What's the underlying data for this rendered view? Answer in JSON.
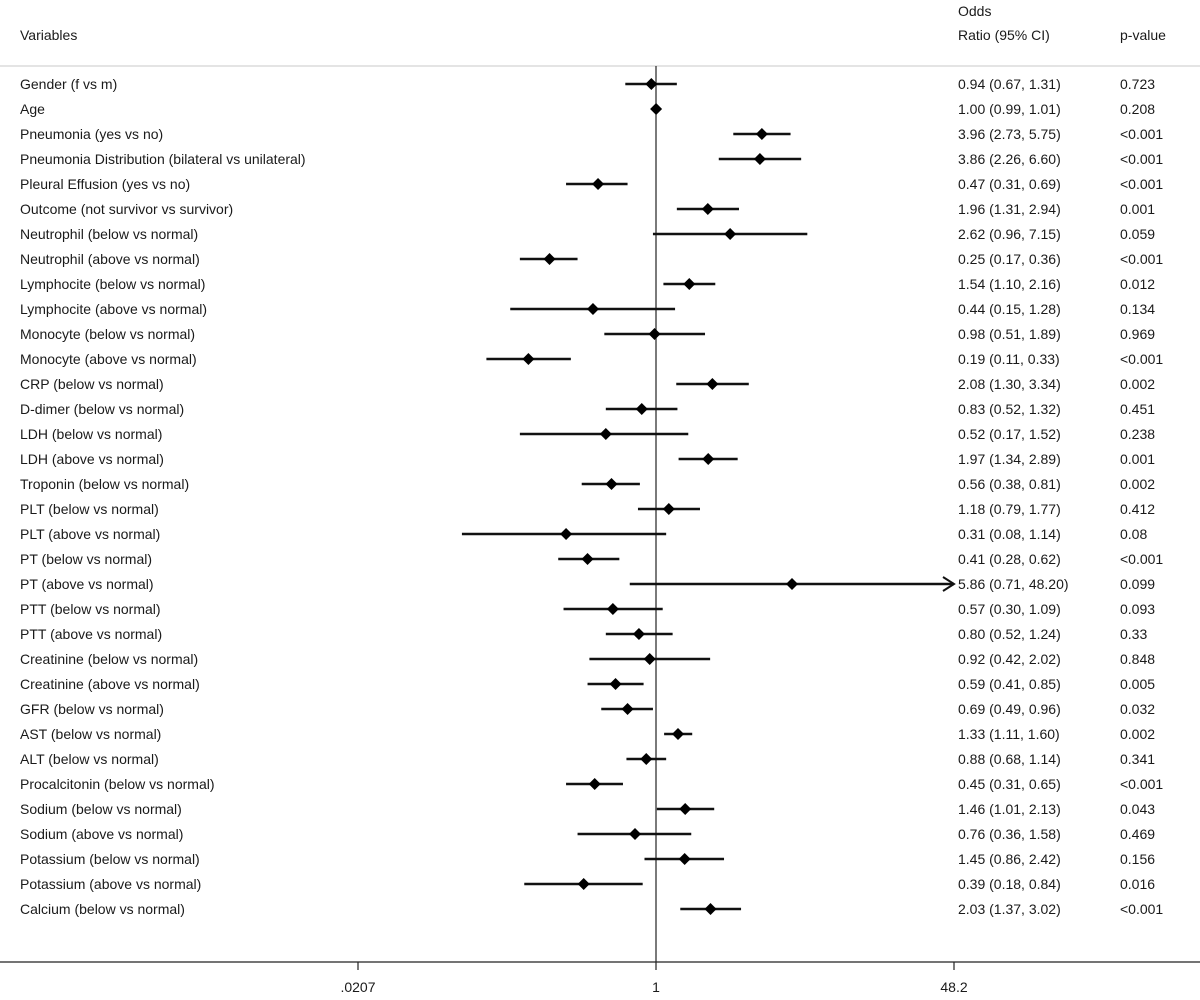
{
  "chart_data": {
    "type": "forest",
    "headers": {
      "variables": "Variables",
      "or_line1": "Odds",
      "or_line2": "Ratio (95% CI)",
      "pvalue": "p-value"
    },
    "x_scale": "log",
    "xlim": [
      0.0207,
      48.2
    ],
    "xticks": [
      ".0207",
      "1",
      "48.2"
    ],
    "reference_line": 1,
    "rows": [
      {
        "label": "Gender (f vs m)",
        "or": 0.94,
        "lo": 0.67,
        "hi": 1.31,
        "ci_text": "0.94 (0.67, 1.31)",
        "p": "0.723"
      },
      {
        "label": "Age",
        "or": 1.0,
        "lo": 0.99,
        "hi": 1.01,
        "ci_text": "1.00 (0.99, 1.01)",
        "p": "0.208"
      },
      {
        "label": "Pneumonia (yes vs no)",
        "or": 3.96,
        "lo": 2.73,
        "hi": 5.75,
        "ci_text": "3.96 (2.73, 5.75)",
        "p": "<0.001"
      },
      {
        "label": "Pneumonia Distribution (bilateral vs unilateral)",
        "or": 3.86,
        "lo": 2.26,
        "hi": 6.6,
        "ci_text": "3.86 (2.26, 6.60)",
        "p": "<0.001"
      },
      {
        "label": "Pleural Effusion (yes vs no)",
        "or": 0.47,
        "lo": 0.31,
        "hi": 0.69,
        "ci_text": "0.47 (0.31, 0.69)",
        "p": "<0.001"
      },
      {
        "label": "Outcome (not survivor vs survivor)",
        "or": 1.96,
        "lo": 1.31,
        "hi": 2.94,
        "ci_text": "1.96 (1.31, 2.94)",
        "p": "0.001"
      },
      {
        "label": "Neutrophil (below vs normal)",
        "or": 2.62,
        "lo": 0.96,
        "hi": 7.15,
        "ci_text": "2.62 (0.96, 7.15)",
        "p": "0.059"
      },
      {
        "label": "Neutrophil (above vs normal)",
        "or": 0.25,
        "lo": 0.17,
        "hi": 0.36,
        "ci_text": "0.25 (0.17, 0.36)",
        "p": "<0.001"
      },
      {
        "label": "Lymphocite (below vs normal)",
        "or": 1.54,
        "lo": 1.1,
        "hi": 2.16,
        "ci_text": "1.54 (1.10, 2.16)",
        "p": "0.012"
      },
      {
        "label": "Lymphocite (above vs normal)",
        "or": 0.44,
        "lo": 0.15,
        "hi": 1.28,
        "ci_text": "0.44 (0.15, 1.28)",
        "p": "0.134"
      },
      {
        "label": "Monocyte (below vs normal)",
        "or": 0.98,
        "lo": 0.51,
        "hi": 1.89,
        "ci_text": "0.98 (0.51, 1.89)",
        "p": "0.969"
      },
      {
        "label": "Monocyte (above vs normal)",
        "or": 0.19,
        "lo": 0.11,
        "hi": 0.33,
        "ci_text": "0.19 (0.11, 0.33)",
        "p": "<0.001"
      },
      {
        "label": "CRP (below vs normal)",
        "or": 2.08,
        "lo": 1.3,
        "hi": 3.34,
        "ci_text": "2.08 (1.30, 3.34)",
        "p": "0.002"
      },
      {
        "label": "D-dimer (below vs normal)",
        "or": 0.83,
        "lo": 0.52,
        "hi": 1.32,
        "ci_text": "0.83 (0.52, 1.32)",
        "p": "0.451"
      },
      {
        "label": "LDH (below vs normal)",
        "or": 0.52,
        "lo": 0.17,
        "hi": 1.52,
        "ci_text": "0.52 (0.17, 1.52)",
        "p": "0.238"
      },
      {
        "label": "LDH (above vs normal)",
        "or": 1.97,
        "lo": 1.34,
        "hi": 2.89,
        "ci_text": "1.97 (1.34, 2.89)",
        "p": "0.001"
      },
      {
        "label": "Troponin (below vs normal)",
        "or": 0.56,
        "lo": 0.38,
        "hi": 0.81,
        "ci_text": "0.56 (0.38, 0.81)",
        "p": "0.002"
      },
      {
        "label": "PLT (below vs normal)",
        "or": 1.18,
        "lo": 0.79,
        "hi": 1.77,
        "ci_text": "1.18 (0.79, 1.77)",
        "p": "0.412"
      },
      {
        "label": "PLT (above vs normal)",
        "or": 0.31,
        "lo": 0.08,
        "hi": 1.14,
        "ci_text": "0.31 (0.08, 1.14)",
        "p": "0.08"
      },
      {
        "label": "PT (below vs normal)",
        "or": 0.41,
        "lo": 0.28,
        "hi": 0.62,
        "ci_text": "0.41 (0.28, 0.62)",
        "p": "<0.001"
      },
      {
        "label": "PT (above vs normal)",
        "or": 5.86,
        "lo": 0.71,
        "hi": 48.2,
        "ci_text": "5.86 (0.71, 48.20)",
        "p": "0.099",
        "arrow": true
      },
      {
        "label": "PTT (below vs normal)",
        "or": 0.57,
        "lo": 0.3,
        "hi": 1.09,
        "ci_text": "0.57 (0.30, 1.09)",
        "p": "0.093"
      },
      {
        "label": "PTT (above vs normal)",
        "or": 0.8,
        "lo": 0.52,
        "hi": 1.24,
        "ci_text": "0.80 (0.52, 1.24)",
        "p": "0.33"
      },
      {
        "label": "Creatinine (below vs normal)",
        "or": 0.92,
        "lo": 0.42,
        "hi": 2.02,
        "ci_text": "0.92 (0.42, 2.02)",
        "p": "0.848"
      },
      {
        "label": "Creatinine (above vs normal)",
        "or": 0.59,
        "lo": 0.41,
        "hi": 0.85,
        "ci_text": "0.59 (0.41, 0.85)",
        "p": "0.005"
      },
      {
        "label": "GFR  (below vs normal)",
        "or": 0.69,
        "lo": 0.49,
        "hi": 0.96,
        "ci_text": "0.69 (0.49, 0.96)",
        "p": "0.032"
      },
      {
        "label": "AST  (below vs normal)",
        "or": 1.33,
        "lo": 1.11,
        "hi": 1.6,
        "ci_text": "1.33 (1.11, 1.60)",
        "p": "0.002"
      },
      {
        "label": "ALT  (below vs normal)",
        "or": 0.88,
        "lo": 0.68,
        "hi": 1.14,
        "ci_text": "0.88 (0.68, 1.14)",
        "p": "0.341"
      },
      {
        "label": "Procalcitonin  (below vs normal)",
        "or": 0.45,
        "lo": 0.31,
        "hi": 0.65,
        "ci_text": "0.45 (0.31, 0.65)",
        "p": "<0.001"
      },
      {
        "label": "Sodium (below vs normal)",
        "or": 1.46,
        "lo": 1.01,
        "hi": 2.13,
        "ci_text": "1.46 (1.01, 2.13)",
        "p": "0.043"
      },
      {
        "label": "Sodium (above vs normal)",
        "or": 0.76,
        "lo": 0.36,
        "hi": 1.58,
        "ci_text": "0.76 (0.36, 1.58)",
        "p": "0.469"
      },
      {
        "label": "Potassium (below vs normal)",
        "or": 1.45,
        "lo": 0.86,
        "hi": 2.42,
        "ci_text": "1.45 (0.86, 2.42)",
        "p": "0.156"
      },
      {
        "label": "Potassium (above vs normal)",
        "or": 0.39,
        "lo": 0.18,
        "hi": 0.84,
        "ci_text": "0.39 (0.18, 0.84)",
        "p": "0.016"
      },
      {
        "label": "Calcium (below vs normal)",
        "or": 2.03,
        "lo": 1.37,
        "hi": 3.02,
        "ci_text": "2.03 (1.37, 3.02)",
        "p": "<0.001"
      }
    ]
  }
}
